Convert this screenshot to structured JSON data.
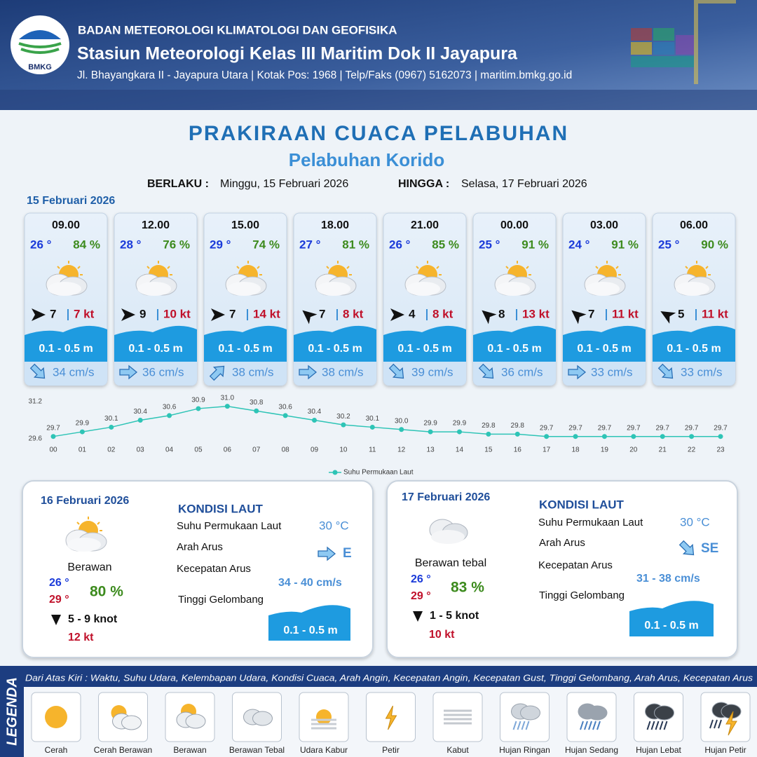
{
  "header": {
    "org": "BADAN METEOROLOGI KLIMATOLOGI DAN GEOFISIKA",
    "station": "Stasiun Meteorologi Kelas III Maritim Dok II Jayapura",
    "address": "Jl. Bhayangkara II - Jayapura Utara | Kotak Pos: 1968 | Telp/Faks (0967) 5162073 | maritim.bmkg.go.id",
    "logo_text": "BMKG"
  },
  "title": "PRAKIRAAN CUACA PELABUHAN",
  "subtitle": "Pelabuhan Korido",
  "validity": {
    "from_label": "BERLAKU :",
    "from": "Minggu, 15 Februari 2026",
    "to_label": "HINGGA :",
    "to": "Selasa, 17 Februari 2026"
  },
  "day1": {
    "date": "15 Februari 2026",
    "cards": [
      {
        "time": "09.00",
        "temp": "26 °",
        "humidity": "84 %",
        "wind": "7",
        "gust": "7 kt",
        "wave": "0.1 - 0.5 m",
        "current": "34 cm/s"
      },
      {
        "time": "12.00",
        "temp": "28 °",
        "humidity": "76 %",
        "wind": "9",
        "gust": "10 kt",
        "wave": "0.1 - 0.5 m",
        "current": "36 cm/s"
      },
      {
        "time": "15.00",
        "temp": "29 °",
        "humidity": "74 %",
        "wind": "7",
        "gust": "14 kt",
        "wave": "0.1 - 0.5 m",
        "current": "38 cm/s"
      },
      {
        "time": "18.00",
        "temp": "27 °",
        "humidity": "81 %",
        "wind": "7",
        "gust": "8 kt",
        "wave": "0.1 - 0.5 m",
        "current": "38 cm/s"
      },
      {
        "time": "21.00",
        "temp": "26 °",
        "humidity": "85 %",
        "wind": "4",
        "gust": "8 kt",
        "wave": "0.1 - 0.5 m",
        "current": "39 cm/s"
      },
      {
        "time": "00.00",
        "temp": "25 °",
        "humidity": "91 %",
        "wind": "8",
        "gust": "13 kt",
        "wave": "0.1 - 0.5 m",
        "current": "36 cm/s"
      },
      {
        "time": "03.00",
        "temp": "24 °",
        "humidity": "91 %",
        "wind": "7",
        "gust": "11 kt",
        "wave": "0.1 - 0.5 m",
        "current": "33 cm/s"
      },
      {
        "time": "06.00",
        "temp": "25 °",
        "humidity": "90 %",
        "wind": "5",
        "gust": "11 kt",
        "wave": "0.1 - 0.5 m",
        "current": "33 cm/s"
      }
    ]
  },
  "chart_data": {
    "type": "line",
    "categories": [
      "00",
      "01",
      "02",
      "03",
      "04",
      "05",
      "06",
      "07",
      "08",
      "09",
      "10",
      "11",
      "12",
      "13",
      "14",
      "15",
      "16",
      "17",
      "18",
      "19",
      "20",
      "21",
      "22",
      "23"
    ],
    "series": [
      {
        "name": "Suhu Permukaan Laut",
        "color": "#2ec4b6",
        "values": [
          29.7,
          29.9,
          30.1,
          30.4,
          30.6,
          30.9,
          31.0,
          30.8,
          30.6,
          30.4,
          30.2,
          30.1,
          30.0,
          29.9,
          29.9,
          29.8,
          29.8,
          29.7,
          29.7,
          29.7,
          29.7,
          29.7,
          29.7,
          29.7
        ],
        "value_labels": [
          "29.7",
          "29.9",
          "30.1",
          "30.4",
          "30.6",
          "30.9",
          "31.0",
          "30.8",
          "30.6",
          "30.4",
          "30.2",
          "30.1",
          "30.0",
          "29.9",
          "29.9",
          "29.8",
          "29.8",
          "29.7",
          "29.7",
          "29.7",
          "29.7",
          "29.7",
          "29.7",
          "29.7"
        ]
      }
    ],
    "ylim": [
      29.6,
      31.2
    ],
    "yticks": [
      29.6,
      31.2
    ],
    "grid": false,
    "legend": "bottom"
  },
  "day2": {
    "date": "16 Februari 2026",
    "condition": "Berawan",
    "temp_min": "26 °",
    "temp_max": "29 °",
    "humidity": "80 %",
    "wind": "5  - 9 knot",
    "gust": "12 kt",
    "sea_title": "KONDISI LAUT",
    "sst_label": "Suhu Permukaan Laut",
    "dir_label": "Arah Arus",
    "speed_label": "Kecepatan Arus",
    "wave_label": "Tinggi Gelombang",
    "sst": "30 °C",
    "dir": "E",
    "speed": "34 - 40 cm/s",
    "wave": "0.1 - 0.5 m"
  },
  "day3": {
    "date": "17 Februari 2026",
    "condition": "Berawan tebal",
    "temp_min": "26 °",
    "temp_max": "29 °",
    "humidity": "83 %",
    "wind": "1  - 5 knot",
    "gust": "10 kt",
    "sea_title": "KONDISI LAUT",
    "sst_label": "Suhu Permukaan Laut",
    "dir_label": "Arah Arus",
    "speed_label": "Kecepatan Arus",
    "wave_label": "Tinggi Gelombang",
    "sst": "30 °C",
    "dir": "SE",
    "speed": "31  - 38 cm/s",
    "wave": "0.1 - 0.5 m"
  },
  "legend": {
    "title": "LEGENDA",
    "description": "Dari Atas Kiri : Waktu, Suhu Udara, Kelembapan Udara, Kondisi Cuaca, Arah Angin, Kecepatan Angin, Kecepatan Gust, Tinggi Gelombang, Arah Arus, Kecepatan Arus",
    "items": [
      "Cerah",
      "Cerah Berawan",
      "Berawan",
      "Berawan Tebal",
      "Udara Kabur",
      "Petir",
      "Kabut",
      "Hujan Ringan",
      "Hujan Sedang",
      "Hujan Lebat",
      "Hujan Petir"
    ]
  }
}
